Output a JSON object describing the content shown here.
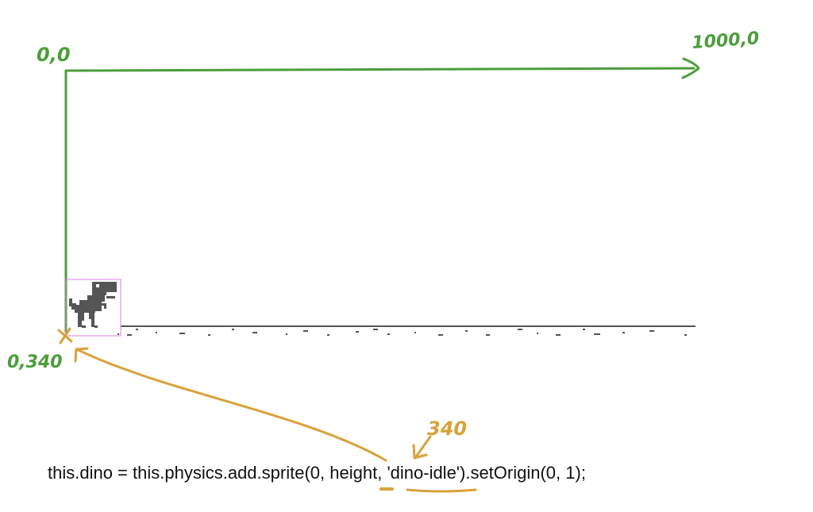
{
  "annotations": {
    "origin_label": "0,0",
    "top_right_label": "1000,0",
    "bottom_left_label": "0,340",
    "height_value_label": "340"
  },
  "code": {
    "prefix": "this.dino = this.physics.add.sprite(",
    "x_arg": "0",
    "sep1": ", ",
    "height_arg": "height",
    "suffix": ", 'dino-idle').setOrigin(0, 1);"
  },
  "colors": {
    "axis_green": "#4a9e3a",
    "annotation_orange": "#d9a23a",
    "dino": "#555555",
    "ground": "#535353",
    "bounding_box": "#e07be0",
    "code_text": "#111111"
  },
  "sprites": {
    "player": "dino-icon"
  }
}
